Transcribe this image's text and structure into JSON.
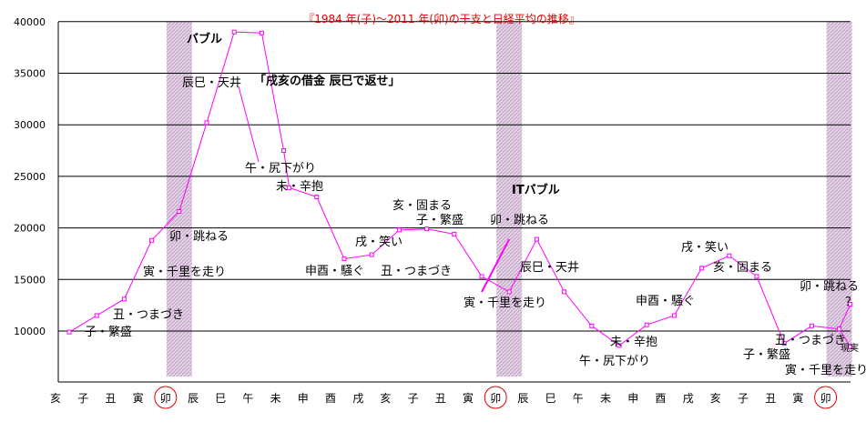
{
  "chart_data": {
    "type": "line",
    "title": "『1984 年(子)～2011 年(卯)の干支と日経平均の推移』",
    "xlabel": "",
    "ylabel": "",
    "ylim": [
      5000,
      40000
    ],
    "yticks": [
      10000,
      15000,
      20000,
      25000,
      30000,
      35000,
      40000
    ],
    "grid": "horizontal",
    "categories": [
      "亥",
      "子",
      "丑",
      "寅",
      "卯",
      "辰",
      "巳",
      "午",
      "未",
      "申",
      "酉",
      "戌",
      "亥",
      "子",
      "丑",
      "寅",
      "卯",
      "辰",
      "巳",
      "午",
      "未",
      "申",
      "酉",
      "戌",
      "亥",
      "子",
      "丑",
      "寅",
      "卯"
    ],
    "highlight_categories": [
      4,
      16,
      28
    ],
    "series": [
      {
        "color": "#ff00ff",
        "x": [
          0,
          1,
          2,
          3,
          4,
          5,
          6,
          7,
          7.8,
          8,
          9,
          10,
          11,
          12,
          13,
          14,
          15,
          16,
          17,
          18,
          19,
          20,
          21,
          22,
          23,
          24,
          25,
          26,
          27,
          28,
          28.4
        ],
        "values": [
          9900,
          11500,
          13100,
          18800,
          21600,
          30200,
          39000,
          38900,
          27500,
          23900,
          23000,
          17000,
          17400,
          19800,
          19900,
          19400,
          15300,
          13800,
          18900,
          13800,
          10500,
          8600,
          10600,
          11500,
          16100,
          17300,
          15300,
          8800,
          10500,
          10200,
          12600
        ]
      },
      {
        "color": "#ff00ff",
        "x": [
          28,
          28.4
        ],
        "values": [
          10200,
          8500
        ]
      }
    ],
    "annotations": [
      {
        "text": "子・繁盛"
      },
      {
        "text": "丑・つまづき"
      },
      {
        "text": "寅・千里を走り"
      },
      {
        "text": "卯・跳ねる"
      },
      {
        "text": "バブル",
        "bold": true
      },
      {
        "text": "辰巳・天井"
      },
      {
        "text": "「戌亥の借金  辰巳で返せ」",
        "bold": true
      },
      {
        "text": "午・尻下がり"
      },
      {
        "text": "未・辛抱"
      },
      {
        "text": "申酉・騒ぐ"
      },
      {
        "text": "戌・笑い"
      },
      {
        "text": "亥・固まる"
      },
      {
        "text": "子・繁盛"
      },
      {
        "text": "丑・つまづき"
      },
      {
        "text": "ITバブル",
        "bold": true
      },
      {
        "text": "卯・跳ねる"
      },
      {
        "text": "寅・千里を走り"
      },
      {
        "text": "辰巳・天井"
      },
      {
        "text": "未・辛抱"
      },
      {
        "text": "午・尻下がり"
      },
      {
        "text": "申酉・騒ぐ"
      },
      {
        "text": "戌・笑い"
      },
      {
        "text": "亥・固まる"
      },
      {
        "text": "子・繁盛"
      },
      {
        "text": "丑・つまづき"
      },
      {
        "text": "寅・千里を走り"
      },
      {
        "text": "卯・跳ねる"
      },
      {
        "text": "？"
      },
      {
        "text": "現実"
      }
    ]
  }
}
